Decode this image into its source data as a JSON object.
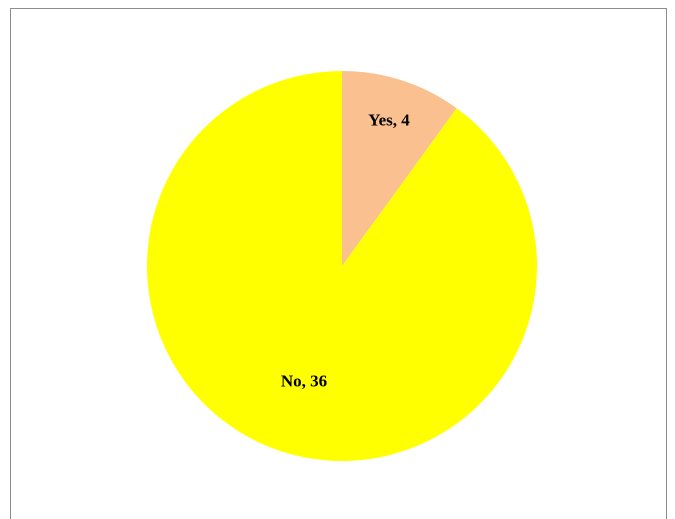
{
  "chart_data": {
    "type": "pie",
    "values": [
      4,
      36
    ],
    "value_labels": [
      "Yes, 4",
      "No, 36"
    ],
    "colors": [
      "#fac090",
      "#ffff00"
    ]
  }
}
